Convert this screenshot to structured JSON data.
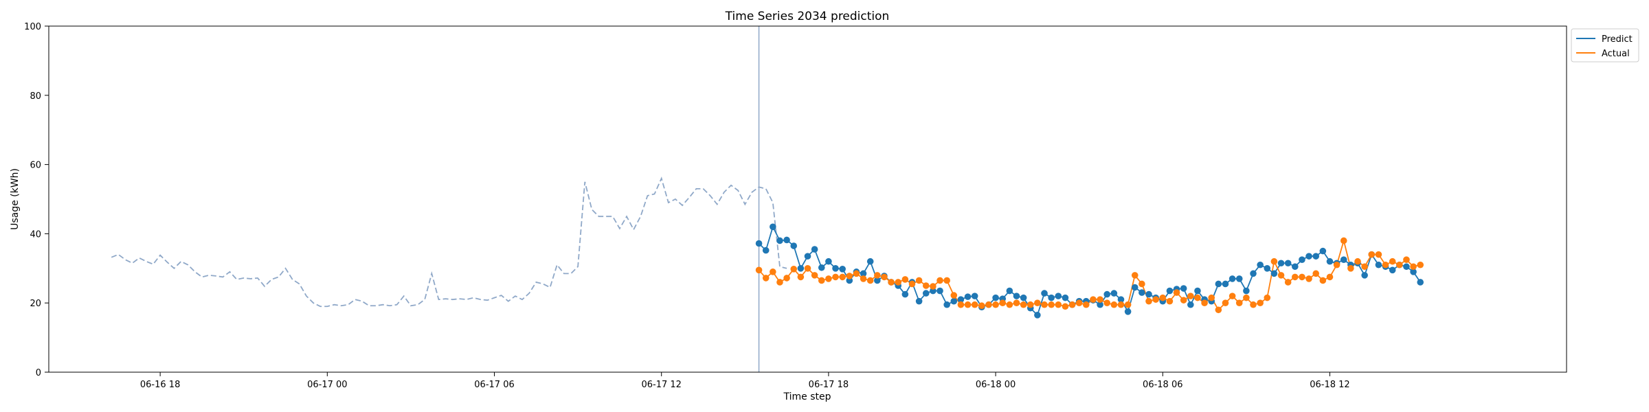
{
  "chart_data": {
    "type": "line",
    "title": "Time Series 2034 prediction",
    "xlabel": "Time step",
    "ylabel": "Usage (kWh)",
    "ylim": [
      0,
      100
    ],
    "yticks": [
      0,
      20,
      40,
      60,
      80,
      100
    ],
    "xlim": [
      "2034-06-16T14:00",
      "2034-06-18T20:30"
    ],
    "xticks": [
      {
        "t": "2034-06-16T18:00",
        "label": "06-16 18"
      },
      {
        "t": "2034-06-17T00:00",
        "label": "06-17 00"
      },
      {
        "t": "2034-06-17T06:00",
        "label": "06-17 06"
      },
      {
        "t": "2034-06-17T12:00",
        "label": "06-17 12"
      },
      {
        "t": "2034-06-17T18:00",
        "label": "06-17 18"
      },
      {
        "t": "2034-06-18T00:00",
        "label": "06-18 00"
      },
      {
        "t": "2034-06-18T06:00",
        "label": "06-18 06"
      },
      {
        "t": "2034-06-18T12:00",
        "label": "06-18 12"
      }
    ],
    "grid": false,
    "legend_position": "upper-right-outside",
    "interval_minutes": 15,
    "forecast_start": "2034-06-17T15:30",
    "colors": {
      "history": "#8fa8c8",
      "predict": "#1f77b4",
      "actual": "#ff7f0e",
      "vline": "#8fa8c8"
    },
    "history": {
      "start": "2034-06-16T16:15",
      "values": [
        33.2,
        34.0,
        32.5,
        31.5,
        33.0,
        32.0,
        31.2,
        33.8,
        31.8,
        30.0,
        32.0,
        31.0,
        29.0,
        27.5,
        28.0,
        27.8,
        27.5,
        29.0,
        26.8,
        27.2,
        27.0,
        27.2,
        24.8,
        26.8,
        27.5,
        30.0,
        26.8,
        25.5,
        22.0,
        20.0,
        19.0,
        19.0,
        19.5,
        19.2,
        19.5,
        21.0,
        20.5,
        19.2,
        19.2,
        19.5,
        19.2,
        19.5,
        22.0,
        19.2,
        19.5,
        21.0,
        28.5,
        21.0,
        21.2,
        21.0,
        21.2,
        21.0,
        21.5,
        21.0,
        20.8,
        21.5,
        22.2,
        20.5,
        22.0,
        21.0,
        22.8,
        26.0,
        25.5,
        24.5,
        31.0,
        28.5,
        28.5,
        30.5,
        55.0,
        47.0,
        45.0,
        45.0,
        45.0,
        41.5,
        45.0,
        41.2,
        45.0,
        51.0,
        51.5,
        56.0,
        49.0,
        50.0,
        48.2,
        50.5,
        53.0,
        53.0,
        51.0,
        48.5,
        52.0,
        54.0,
        52.5,
        48.5,
        52.0,
        53.5,
        53.0,
        49.0,
        30.5,
        30.0
      ]
    },
    "series": [
      {
        "name": "Predict",
        "values": [
          37.2,
          35.2,
          42.0,
          38.0,
          38.2,
          36.5,
          30.0,
          33.5,
          35.5,
          30.2,
          32.0,
          30.0,
          29.8,
          26.5,
          29.0,
          28.5,
          32.0,
          26.5,
          27.8,
          26.0,
          25.0,
          22.5,
          26.0,
          20.5,
          22.8,
          23.5,
          23.5,
          19.5,
          20.5,
          21.0,
          21.8,
          22.0,
          18.8,
          19.5,
          21.5,
          21.2,
          23.5,
          22.0,
          21.5,
          18.5,
          16.5,
          22.8,
          21.5,
          22.0,
          21.5,
          19.5,
          20.5,
          20.5,
          20.8,
          19.5,
          22.5,
          22.8,
          21.0,
          17.5,
          24.5,
          23.0,
          22.5,
          21.5,
          20.5,
          23.5,
          24.0,
          24.2,
          19.5,
          23.5,
          21.0,
          20.5,
          25.5,
          25.5,
          27.0,
          27.0,
          23.5,
          28.5,
          31.0,
          30.0,
          28.5,
          31.5,
          31.5,
          30.5,
          32.5,
          33.5,
          33.5,
          35.0,
          32.0,
          31.5,
          32.5,
          31.0,
          31.5,
          28.0,
          34.0,
          31.0,
          30.5,
          29.5,
          31.0,
          30.5,
          29.0,
          26.0
        ]
      },
      {
        "name": "Actual",
        "values": [
          29.5,
          27.2,
          29.0,
          26.0,
          27.2,
          29.8,
          27.5,
          30.0,
          28.0,
          26.5,
          27.0,
          27.5,
          27.5,
          27.8,
          28.5,
          27.0,
          26.5,
          28.0,
          27.5,
          26.0,
          26.0,
          26.8,
          25.5,
          26.5,
          25.0,
          24.8,
          26.5,
          26.5,
          22.2,
          19.5,
          19.5,
          19.5,
          19.2,
          19.5,
          19.5,
          20.0,
          19.5,
          20.0,
          19.5,
          19.5,
          20.0,
          19.5,
          19.5,
          19.5,
          19.0,
          19.5,
          20.0,
          19.5,
          21.0,
          21.0,
          20.0,
          19.5,
          19.5,
          19.5,
          28.0,
          25.5,
          20.5,
          21.0,
          21.5,
          20.5,
          23.0,
          20.8,
          22.0,
          21.5,
          20.0,
          21.5,
          18.0,
          20.0,
          22.0,
          20.0,
          21.5,
          19.5,
          20.0,
          21.5,
          32.0,
          28.0,
          26.0,
          27.5,
          27.5,
          27.0,
          28.5,
          26.5,
          27.5,
          31.0,
          38.0,
          30.0,
          32.0,
          30.5,
          34.0,
          34.0,
          31.0,
          32.0,
          31.0,
          32.5,
          30.5,
          31.0
        ]
      }
    ]
  }
}
